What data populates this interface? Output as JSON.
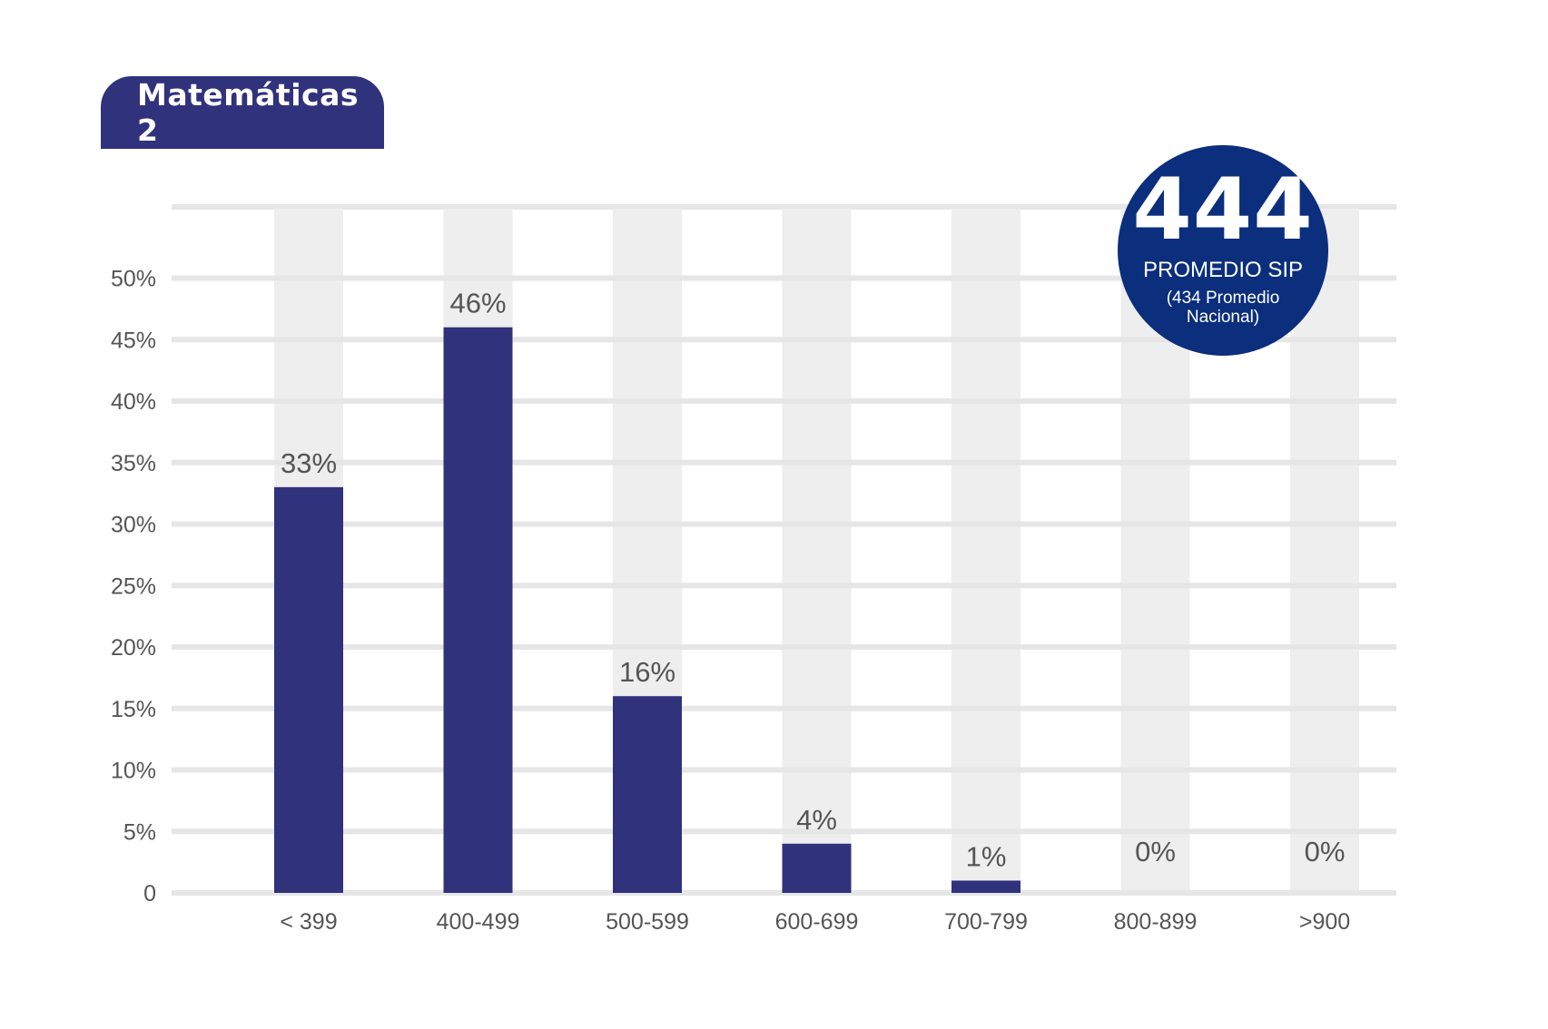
{
  "title": "Matemáticas 2",
  "badge": {
    "value": "444",
    "label": "PROMEDIO SIP",
    "note": "(434 Promedio Nacional)"
  },
  "colors": {
    "bar": "#30327c",
    "track": "#eeeeee",
    "grid": "#e6e6e6",
    "badge": "#0b2e7d",
    "text": "#555555"
  },
  "chart_data": {
    "type": "bar",
    "categories": [
      "< 399",
      "400-499",
      "500-599",
      "600-699",
      "700-799",
      "800-899",
      ">900"
    ],
    "values": [
      33,
      46,
      16,
      4,
      1,
      0,
      0
    ],
    "value_labels": [
      "33%",
      "46%",
      "16%",
      "4%",
      "1%",
      "0%",
      "0%"
    ],
    "yticks": [
      0,
      5,
      10,
      15,
      20,
      25,
      30,
      35,
      40,
      45,
      50
    ],
    "ytick_labels": [
      "0",
      "5%",
      "10%",
      "15%",
      "20%",
      "25%",
      "30%",
      "35%",
      "40%",
      "45%",
      "50%"
    ],
    "ylim": [
      0,
      55
    ],
    "grid": true,
    "legend": "none"
  }
}
